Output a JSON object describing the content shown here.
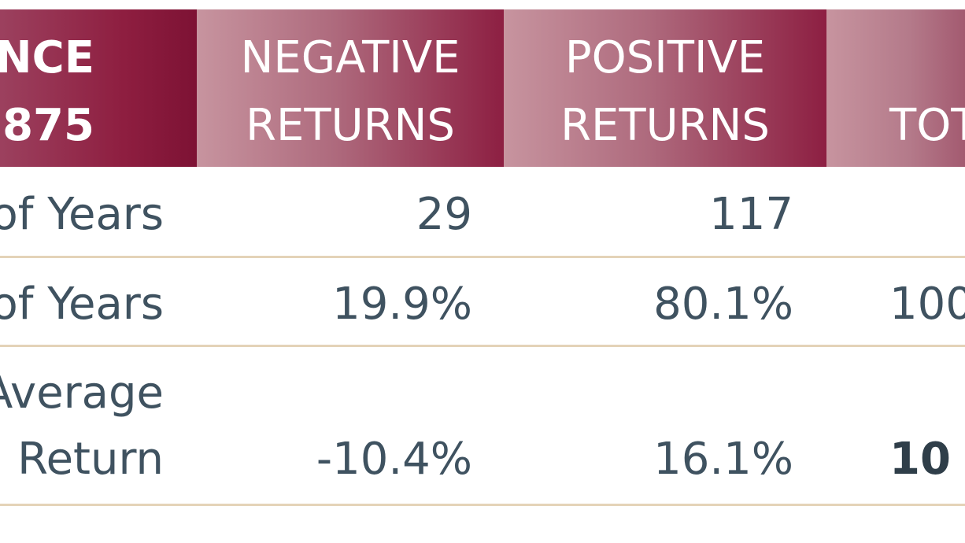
{
  "header": {
    "col0_line1": "NCE",
    "col0_line2": "875",
    "col1_line1": "NEGATIVE",
    "col1_line2": "RETURNS",
    "col2_line1": "POSITIVE",
    "col2_line2": "RETURNS",
    "col3_line2": "TOT"
  },
  "rows": [
    {
      "label": "of Years",
      "negative": "29",
      "positive": "117",
      "total": ""
    },
    {
      "label": "of Years",
      "negative": "19.9%",
      "positive": "80.1%",
      "total": "100"
    },
    {
      "label_line1": "Average",
      "label_line2": "Return",
      "negative": "-10.4%",
      "positive": "16.1%",
      "total": "10"
    }
  ],
  "colors": {
    "header_dark": "#8e1e40",
    "header_light": "#c7949f",
    "text": "#3f5260",
    "rule": "#e4d3b8"
  }
}
